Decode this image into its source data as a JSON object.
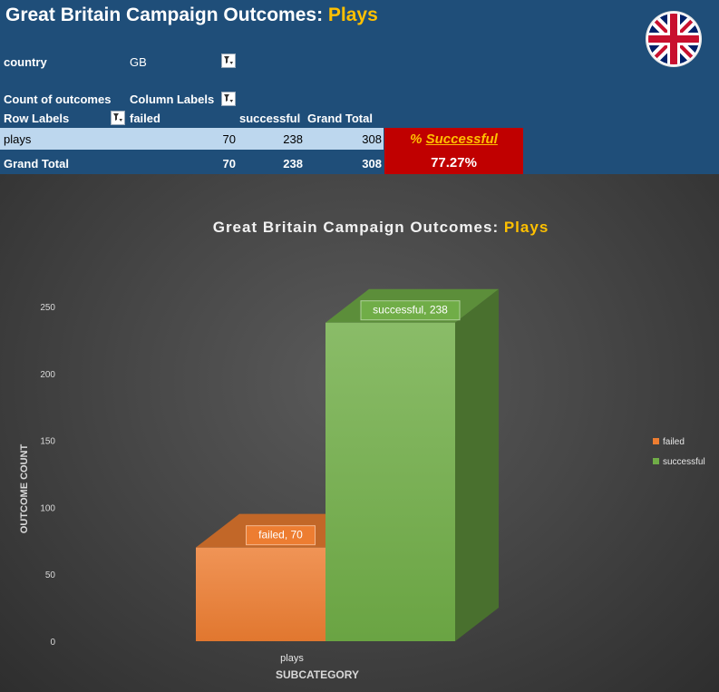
{
  "header": {
    "title_prefix": "Great Britain Campaign Outcomes: ",
    "title_highlight": "Plays"
  },
  "pivot": {
    "filter_label": "country",
    "filter_value": "GB",
    "values_label": "Count of outcomes",
    "column_labels": "Column Labels",
    "row_labels": "Row Labels",
    "columns": [
      "failed",
      "successful",
      "Grand Total"
    ],
    "rows": [
      {
        "label": "plays",
        "values": [
          "70",
          "238",
          "308"
        ]
      },
      {
        "label": "Grand Total",
        "values": [
          "70",
          "238",
          "308"
        ]
      }
    ]
  },
  "success_box": {
    "label_prefix": "% ",
    "label_word": "Successful",
    "value": "77.27%"
  },
  "colors": {
    "header_bg": "#1f4e79",
    "highlight": "#ffc000",
    "row_bg": "#bdd7ee",
    "success_box_bg": "#c00000",
    "failed": "#ed7d31",
    "successful": "#70ad47"
  },
  "icons": {
    "filter": "filter-dropdown-icon",
    "flag": "union-jack-flag-icon"
  },
  "chart_data": {
    "type": "bar",
    "title_prefix": "Great Britain Campaign Outcomes: ",
    "title_highlight": "Plays",
    "categories": [
      "plays"
    ],
    "series": [
      {
        "name": "failed",
        "values": [
          70
        ],
        "label": "failed, 70",
        "color": "#ed7d31"
      },
      {
        "name": "successful",
        "values": [
          238
        ],
        "label": "successful, 238",
        "color": "#70ad47"
      }
    ],
    "xlabel": "SUBCATEGORY",
    "ylabel": "OUTCOME COUNT",
    "ylim": [
      0,
      250
    ],
    "yticks": [
      0,
      50,
      100,
      150,
      200,
      250
    ],
    "legend_position": "right",
    "grid": false,
    "style": "3d-clustered-column"
  }
}
